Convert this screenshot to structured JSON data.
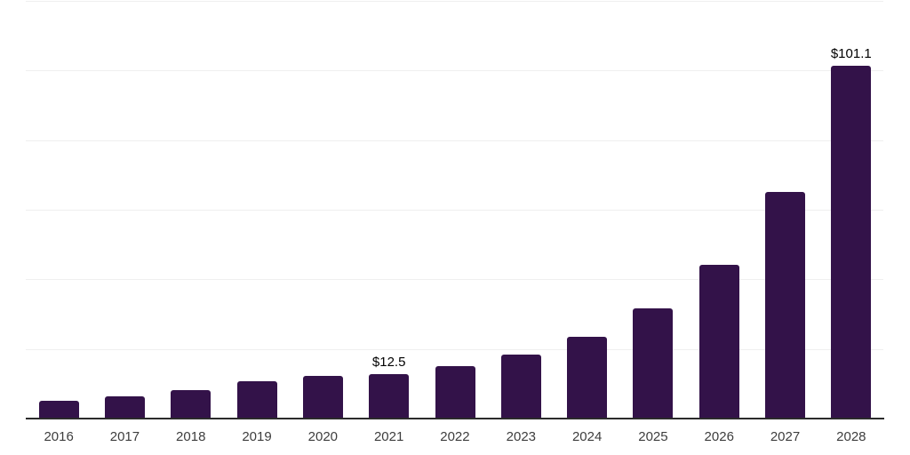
{
  "chart_data": {
    "type": "bar",
    "title": "",
    "xlabel": "",
    "ylabel": "",
    "categories": [
      "2016",
      "2017",
      "2018",
      "2019",
      "2020",
      "2021",
      "2022",
      "2023",
      "2024",
      "2025",
      "2026",
      "2027",
      "2028"
    ],
    "values": [
      4.9,
      6.1,
      7.8,
      10.6,
      12.1,
      12.5,
      14.8,
      18.1,
      23.2,
      31.3,
      43.9,
      64.9,
      101.1
    ],
    "point_labels": [
      {
        "index": 5,
        "text": "$12.5"
      },
      {
        "index": 12,
        "text": "$101.1"
      }
    ],
    "ylim": [
      0,
      120
    ],
    "grid_step": 20,
    "grid": true,
    "legend": false,
    "colors": {
      "bar": "#331249",
      "gridline": "#efefef",
      "axis_line": "#2b2b2b",
      "tick_label": "#3d3d3d",
      "value_label": "#000000",
      "background": "#ffffff"
    }
  }
}
